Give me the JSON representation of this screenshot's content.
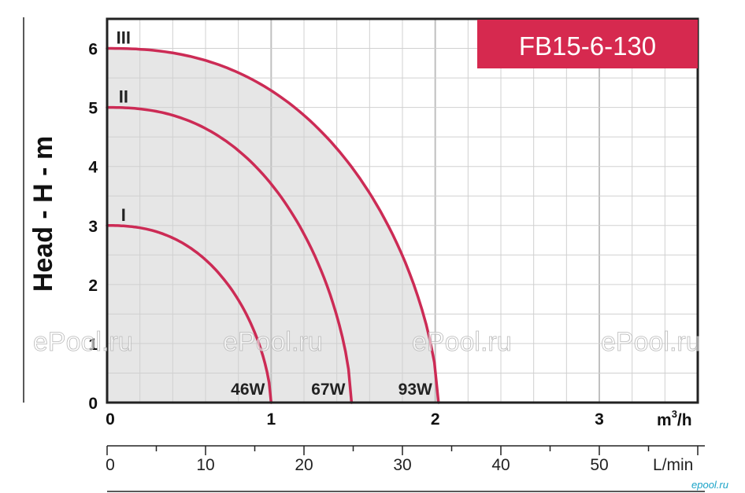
{
  "chart_data": {
    "type": "line",
    "title": "FB15-6-130",
    "ylabel": "Head - H - m",
    "xlabel": "m³/h",
    "x_unit_main": "m",
    "x_unit_sup": "3",
    "x_unit_tail": "/h",
    "secondary_xlabel": "L/min",
    "xlim": [
      0,
      3.6
    ],
    "ylim": [
      0,
      6.5
    ],
    "secondary_xlim": [
      0,
      60
    ],
    "x_ticks": [
      "0",
      "1",
      "2",
      "3"
    ],
    "y_ticks": [
      "0",
      "1",
      "2",
      "3",
      "4",
      "5",
      "6"
    ],
    "secondary_x_ticks": [
      "0",
      "10",
      "20",
      "30",
      "40",
      "50"
    ],
    "grid": true,
    "series": [
      {
        "name": "I",
        "power_label": "46W",
        "shutoff_head": 3,
        "max_flow": 1.0
      },
      {
        "name": "II",
        "power_label": "67W",
        "shutoff_head": 5,
        "max_flow": 1.49
      },
      {
        "name": "III",
        "power_label": "93W",
        "shutoff_head": 6,
        "max_flow": 2.02
      }
    ],
    "colors": {
      "curve": "#cc2b55",
      "title_bg": "#d6294f",
      "fill": "#e6e6e6",
      "grid": "#d0d0d0"
    }
  },
  "watermark": [
    "ePool.ru",
    "ePool.ru",
    "ePool.ru",
    "ePool.ru"
  ],
  "brand": "epool.ru"
}
